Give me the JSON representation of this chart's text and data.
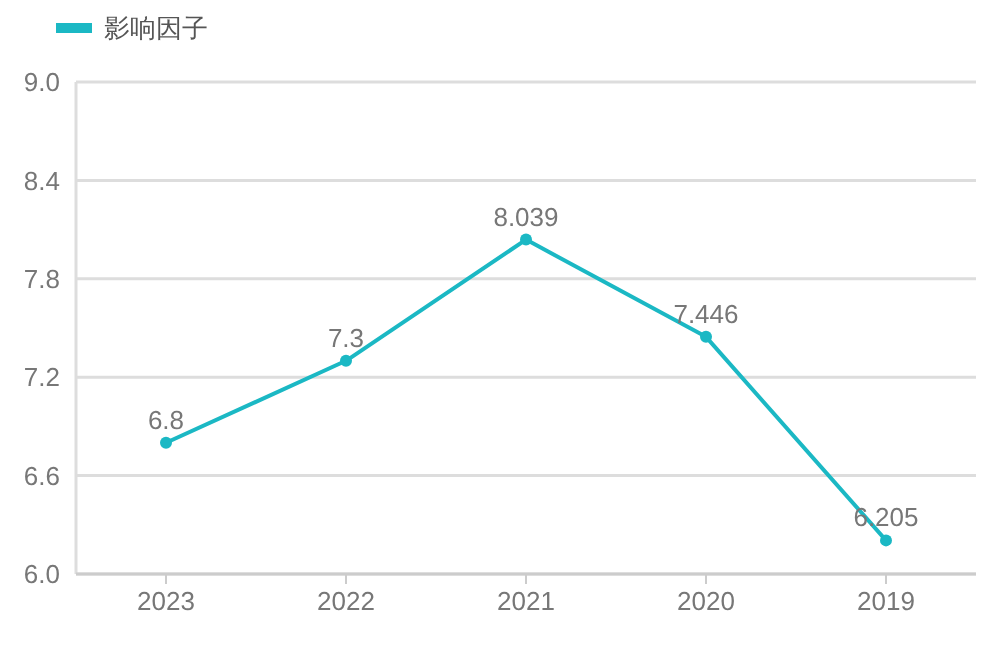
{
  "chart_data": {
    "type": "line",
    "categories": [
      "2023",
      "2022",
      "2021",
      "2020",
      "2019"
    ],
    "series": [
      {
        "name": "影响因子",
        "color": "#1bb8c4",
        "values": [
          6.8,
          7.3,
          8.039,
          7.446,
          6.205
        ]
      }
    ],
    "data_labels": true,
    "ylim": [
      6.0,
      9.0
    ],
    "yticks": [
      {
        "value": 6.0,
        "label": "6.0"
      },
      {
        "value": 6.6,
        "label": "6.6"
      },
      {
        "value": 7.2,
        "label": "7.2"
      },
      {
        "value": 7.8,
        "label": "7.8"
      },
      {
        "value": 8.4,
        "label": "8.4"
      },
      {
        "value": 9.0,
        "label": "9.0"
      }
    ],
    "grid": "y",
    "legend": "top left",
    "marker": "circle"
  }
}
